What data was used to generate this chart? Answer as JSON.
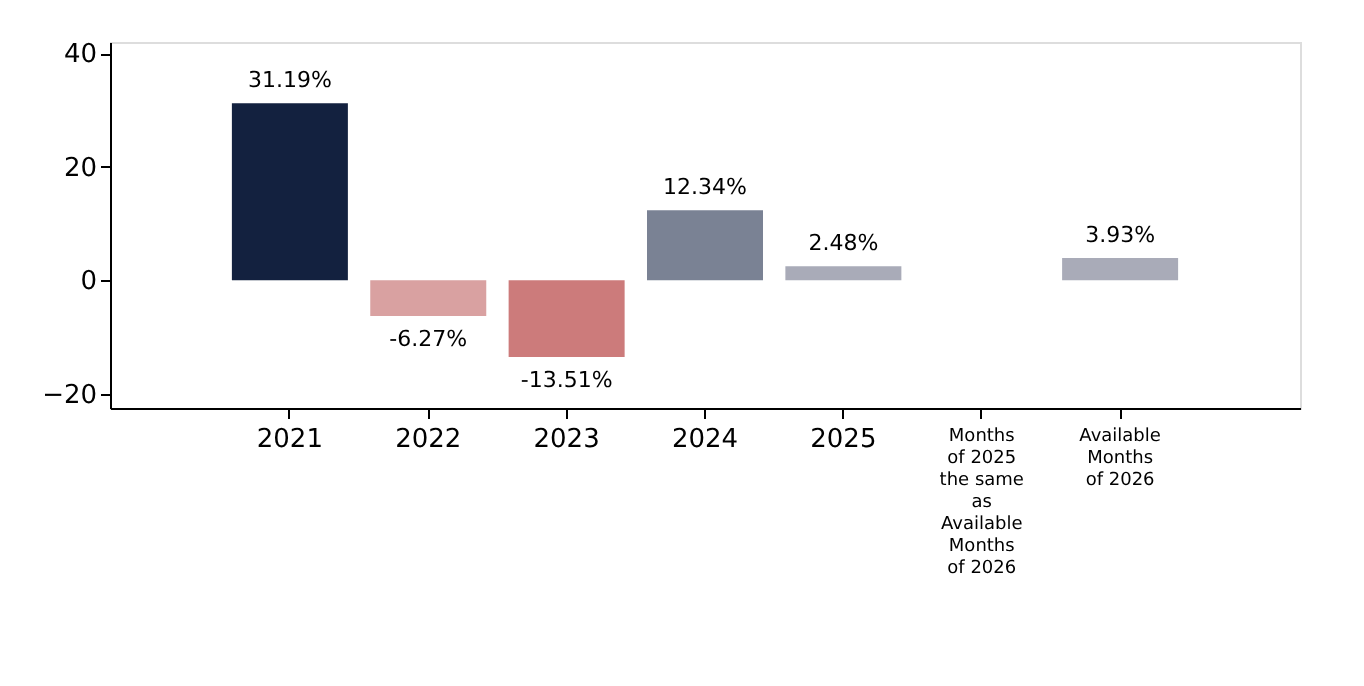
{
  "chart_data": {
    "type": "bar",
    "categories": [
      "2021",
      "2022",
      "2023",
      "2024",
      "2025",
      "Months of 2025 the same as Available Months of 2026",
      "Available Months of 2026"
    ],
    "values": [
      31.19,
      -6.27,
      -13.51,
      12.34,
      2.48,
      null,
      3.93
    ],
    "colors": [
      "#13213f",
      "#d9a1a1",
      "#cc7b7b",
      "#7a8294",
      "#a9abb8",
      "#a9abb8",
      "#a9abb8"
    ],
    "value_labels": [
      "31.19%",
      "-6.27%",
      "-13.51%",
      "12.34%",
      "2.48%",
      null,
      "3.93%"
    ],
    "ylim": [
      -22.5,
      42
    ],
    "yticks": [
      -20,
      0,
      20,
      40
    ],
    "grid": false,
    "legend": false
  }
}
